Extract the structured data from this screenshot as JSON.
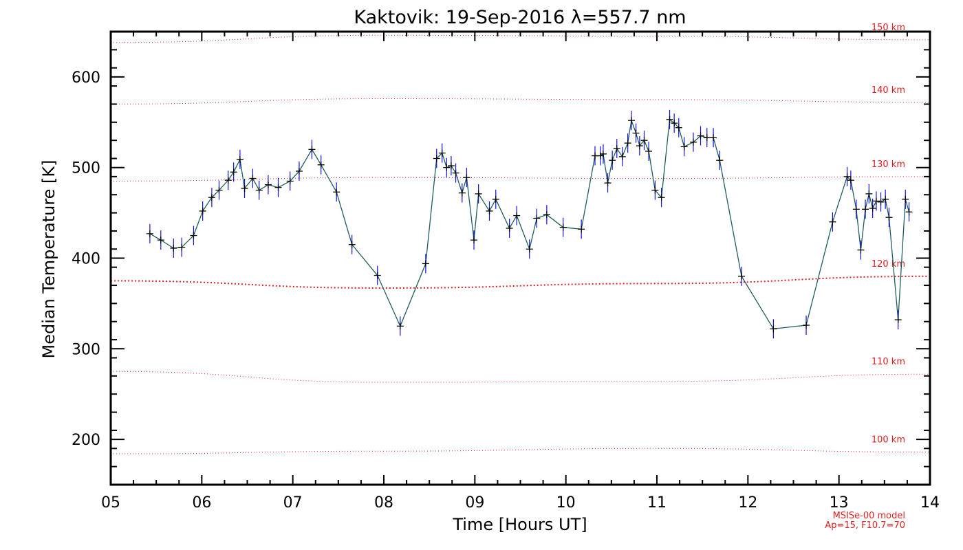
{
  "chart_data": {
    "type": "line",
    "title": "Kaktovik: 19-Sep-2016 λ=557.7 nm",
    "xlabel": "Time [Hours UT]",
    "ylabel": "Median Temperature [K]",
    "xlim": [
      5,
      14
    ],
    "ylim": [
      150,
      650
    ],
    "grid": false,
    "x_ticks": [
      5,
      6,
      7,
      8,
      9,
      10,
      11,
      12,
      13,
      14
    ],
    "x_tick_labels": [
      "05",
      "06",
      "07",
      "08",
      "09",
      "10",
      "11",
      "12",
      "13",
      "14"
    ],
    "y_ticks": [
      200,
      300,
      400,
      500,
      600
    ],
    "y_tick_labels": [
      "200",
      "300",
      "400",
      "500",
      "600"
    ],
    "colors": {
      "line": "#1f5c5c",
      "errorbar": "#1010e0",
      "marker": "#000000",
      "model": "#e02020"
    },
    "series": [
      {
        "x": [
          5.43,
          5.55,
          5.69,
          5.78,
          5.91,
          6.01,
          6.11,
          6.19,
          6.29,
          6.35,
          6.42,
          6.47,
          6.56,
          6.63,
          6.73,
          6.84,
          6.97,
          7.07,
          7.21,
          7.31,
          7.48,
          7.65,
          7.93,
          8.18,
          8.46,
          8.58,
          8.64,
          8.69,
          8.74,
          8.79,
          8.86,
          8.91,
          8.99,
          9.04,
          9.16,
          9.23,
          9.38,
          9.46,
          9.6,
          9.68,
          9.79,
          9.97,
          10.17,
          10.32,
          10.38,
          10.41,
          10.46,
          10.51,
          10.56,
          10.62,
          10.68,
          10.72,
          10.77,
          10.81,
          10.86,
          10.91,
          10.98,
          11.05,
          11.14,
          11.19,
          11.24,
          11.3,
          11.4,
          11.48,
          11.55,
          11.62,
          11.69,
          11.93,
          12.28,
          12.64,
          12.93,
          13.09,
          13.13,
          13.19,
          13.24,
          13.29,
          13.33,
          13.37,
          13.41,
          13.46,
          13.51,
          13.55,
          13.65,
          13.73,
          13.77
        ],
        "values": [
          427,
          420,
          411,
          412,
          425,
          452,
          467,
          475,
          486,
          495,
          509,
          477,
          488,
          475,
          481,
          478,
          485,
          496,
          520,
          503,
          473,
          415,
          381,
          325,
          394,
          510,
          516,
          500,
          502,
          494,
          472,
          489,
          420,
          471,
          452,
          465,
          433,
          447,
          410,
          444,
          448,
          434,
          432,
          513,
          513,
          515,
          483,
          508,
          521,
          512,
          527,
          552,
          538,
          524,
          530,
          518,
          475,
          467,
          553,
          549,
          544,
          523,
          528,
          535,
          533,
          533,
          508,
          380,
          322,
          326,
          440,
          490,
          486,
          454,
          409,
          454,
          471,
          455,
          463,
          462,
          465,
          445,
          332,
          465,
          451
        ]
      }
    ],
    "model_labels": [
      "150 km",
      "140 km",
      "130 km",
      "120 km",
      "110 km",
      "100 km"
    ],
    "model_curves": [
      {
        "label": "150 km",
        "y": [
          638,
          646,
          645,
          641
        ]
      },
      {
        "label": "140 km",
        "y": [
          570,
          576,
          575,
          572
        ]
      },
      {
        "label": "130 km",
        "y": [
          485,
          489,
          488,
          490
        ]
      },
      {
        "label": "120 km",
        "y": [
          375,
          367,
          372,
          380
        ]
      },
      {
        "label": "110 km",
        "y": [
          275,
          263,
          264,
          272
        ]
      },
      {
        "label": "100 km",
        "y": [
          184,
          187,
          190,
          186
        ]
      }
    ],
    "model_note_line1": "MSISe-00 model",
    "model_note_line2": "Ap=15, F10.7=70"
  }
}
